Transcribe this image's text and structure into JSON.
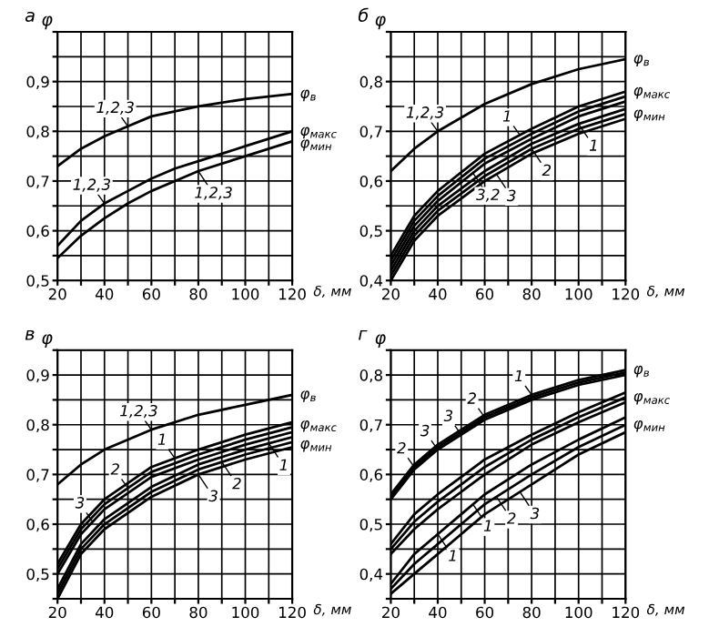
{
  "chart_data": [
    {
      "type": "line",
      "title": "а",
      "xlabel": "δ, мм",
      "ylabel": "φ",
      "grid": true,
      "xlim": [
        20,
        120
      ],
      "ylim": [
        0.5,
        1.0
      ],
      "xticks": [
        20,
        {
          "value": 30,
          "label": null
        },
        40,
        {
          "value": 50,
          "label": null
        },
        60,
        {
          "value": 70,
          "label": null
        },
        80,
        {
          "value": 90,
          "label": null
        },
        100,
        {
          "value": 110,
          "label": null
        },
        120
      ],
      "yticks": [
        {
          "value": 0.5,
          "label": "0,5"
        },
        {
          "value": 0.55,
          "label": null
        },
        {
          "value": 0.6,
          "label": "0,6"
        },
        {
          "value": 0.65,
          "label": null
        },
        {
          "value": 0.7,
          "label": "0,7"
        },
        {
          "value": 0.75,
          "label": null
        },
        {
          "value": 0.8,
          "label": "0,8"
        },
        {
          "value": 0.85,
          "label": null
        },
        {
          "value": 0.9,
          "label": "0,9"
        },
        {
          "value": 0.95,
          "label": null
        },
        {
          "value": 1.0,
          "label": null
        }
      ],
      "x": [
        20,
        30,
        40,
        50,
        60,
        70,
        80,
        100,
        120
      ],
      "series": [
        {
          "color": "#000000",
          "values": [
            0.73,
            0.765,
            0.79,
            0.81,
            0.83,
            0.84,
            0.85,
            0.865,
            0.875
          ]
        },
        {
          "color": "#000000",
          "values": [
            0.57,
            0.62,
            0.655,
            0.68,
            0.705,
            0.725,
            0.74,
            0.77,
            0.8
          ]
        },
        {
          "color": "#000000",
          "values": [
            0.545,
            0.59,
            0.625,
            0.655,
            0.68,
            0.7,
            0.72,
            0.75,
            0.78
          ]
        }
      ],
      "annotations": [
        {
          "text": "1,2,3",
          "x": 50,
          "y": 0.81
        },
        {
          "text": "1,2,3",
          "x": 40,
          "y": 0.655
        },
        {
          "text": "1,2,3",
          "x": 80,
          "y": 0.72
        },
        {
          "text": "φ$_{в}$",
          "x": 120,
          "y": 0.875
        },
        {
          "text": "φ$_{макс}$",
          "x": 120,
          "y": 0.8
        },
        {
          "text": "φ$_{мин}$",
          "x": 120,
          "y": 0.775
        }
      ]
    },
    {
      "type": "line",
      "title": "б",
      "xlabel": "δ, мм",
      "ylabel": "φ",
      "grid": true,
      "xlim": [
        20,
        120
      ],
      "ylim": [
        0.4,
        0.9
      ],
      "xticks": [
        20,
        {
          "value": 30,
          "label": null
        },
        40,
        {
          "value": 50,
          "label": null
        },
        60,
        {
          "value": 70,
          "label": null
        },
        80,
        {
          "value": 90,
          "label": null
        },
        100,
        {
          "value": 110,
          "label": null
        },
        120
      ],
      "yticks": [
        {
          "value": 0.4,
          "label": "0,4"
        },
        {
          "value": 0.45,
          "label": null
        },
        {
          "value": 0.5,
          "label": "0,5"
        },
        {
          "value": 0.55,
          "label": null
        },
        {
          "value": 0.6,
          "label": "0,6"
        },
        {
          "value": 0.65,
          "label": null
        },
        {
          "value": 0.7,
          "label": "0,7"
        },
        {
          "value": 0.75,
          "label": null
        },
        {
          "value": 0.8,
          "label": "0,8"
        },
        {
          "value": 0.85,
          "label": null
        },
        {
          "value": 0.9,
          "label": null
        }
      ],
      "x": [
        20,
        30,
        40,
        60,
        80,
        100,
        120
      ],
      "series": [
        {
          "color": "#000000",
          "values": [
            0.62,
            0.665,
            0.7,
            0.755,
            0.795,
            0.825,
            0.845
          ]
        },
        {
          "color": "#000000",
          "values": [
            0.45,
            0.53,
            0.58,
            0.655,
            0.705,
            0.75,
            0.78
          ]
        },
        {
          "color": "#000000",
          "values": [
            0.44,
            0.52,
            0.57,
            0.645,
            0.695,
            0.74,
            0.77
          ]
        },
        {
          "color": "#000000",
          "values": [
            0.43,
            0.51,
            0.56,
            0.635,
            0.685,
            0.73,
            0.76
          ]
        },
        {
          "color": "#000000",
          "values": [
            0.42,
            0.5,
            0.55,
            0.62,
            0.675,
            0.715,
            0.745
          ]
        },
        {
          "color": "#000000",
          "values": [
            0.41,
            0.49,
            0.54,
            0.61,
            0.665,
            0.705,
            0.735
          ]
        },
        {
          "color": "#000000",
          "values": [
            0.4,
            0.48,
            0.53,
            0.6,
            0.655,
            0.695,
            0.725
          ]
        }
      ],
      "annotations": [
        {
          "text": "1,2,3",
          "x": 40,
          "y": 0.7
        },
        {
          "text": "3,2",
          "x": 55,
          "y": 0.616
        },
        {
          "text": "1",
          "x": 75,
          "y": 0.6925
        },
        {
          "text": "1",
          "x": 100,
          "y": 0.715
        },
        {
          "text": "3",
          "x": 65,
          "y": 0.614
        },
        {
          "text": "2",
          "x": 80,
          "y": 0.665
        },
        {
          "text": "φ$_{в}$",
          "x": 120,
          "y": 0.845
        },
        {
          "text": "φ$_{макс}$",
          "x": 120,
          "y": 0.78
        },
        {
          "text": "φ$_{мин}$",
          "x": 120,
          "y": 0.735
        }
      ]
    },
    {
      "type": "line",
      "title": "в",
      "xlabel": "δ, мм",
      "ylabel": "φ",
      "grid": true,
      "xlim": [
        20,
        120
      ],
      "ylim": [
        0.45,
        0.95
      ],
      "xticks": [
        20,
        {
          "value": 30,
          "label": null
        },
        40,
        {
          "value": 50,
          "label": null
        },
        60,
        {
          "value": 70,
          "label": null
        },
        80,
        {
          "value": 90,
          "label": null
        },
        100,
        {
          "value": 110,
          "label": null
        },
        120
      ],
      "yticks": [
        {
          "value": 0.45,
          "label": null
        },
        {
          "value": 0.5,
          "label": "0,5"
        },
        {
          "value": 0.55,
          "label": null
        },
        {
          "value": 0.6,
          "label": "0,6"
        },
        {
          "value": 0.65,
          "label": null
        },
        {
          "value": 0.7,
          "label": "0,7"
        },
        {
          "value": 0.75,
          "label": null
        },
        {
          "value": 0.8,
          "label": "0,8"
        },
        {
          "value": 0.85,
          "label": null
        },
        {
          "value": 0.9,
          "label": "0,9"
        },
        {
          "value": 0.95,
          "label": null
        }
      ],
      "x": [
        20,
        30,
        40,
        60,
        80,
        100,
        120
      ],
      "series": [
        {
          "color": "#000000",
          "values": [
            0.68,
            0.72,
            0.75,
            0.79,
            0.82,
            0.84,
            0.86
          ]
        },
        {
          "color": "#000000",
          "values": [
            0.52,
            0.6,
            0.65,
            0.715,
            0.75,
            0.78,
            0.805
          ]
        },
        {
          "color": "#000000",
          "values": [
            0.51,
            0.59,
            0.64,
            0.705,
            0.74,
            0.77,
            0.795
          ]
        },
        {
          "color": "#000000",
          "values": [
            0.5,
            0.58,
            0.63,
            0.695,
            0.73,
            0.76,
            0.785
          ]
        },
        {
          "color": "#000000",
          "values": [
            0.47,
            0.56,
            0.61,
            0.675,
            0.72,
            0.75,
            0.775
          ]
        },
        {
          "color": "#000000",
          "values": [
            0.46,
            0.55,
            0.6,
            0.665,
            0.71,
            0.74,
            0.765
          ]
        },
        {
          "color": "#000000",
          "values": [
            0.45,
            0.54,
            0.59,
            0.655,
            0.7,
            0.73,
            0.755
          ]
        }
      ],
      "annotations": [
        {
          "text": "1,2,3",
          "x": 60,
          "y": 0.79
        },
        {
          "text": "3",
          "x": 35,
          "y": 0.605
        },
        {
          "text": "2",
          "x": 50,
          "y": 0.6725
        },
        {
          "text": "1",
          "x": 70,
          "y": 0.7325
        },
        {
          "text": "3",
          "x": 80,
          "y": 0.7
        },
        {
          "text": "2",
          "x": 90,
          "y": 0.725
        },
        {
          "text": "1",
          "x": 110,
          "y": 0.7625
        },
        {
          "text": "φ$_{в}$",
          "x": 120,
          "y": 0.86
        },
        {
          "text": "φ$_{макс}$",
          "x": 120,
          "y": 0.8
        },
        {
          "text": "φ$_{мин}$",
          "x": 120,
          "y": 0.76
        }
      ]
    },
    {
      "type": "line",
      "title": "г",
      "xlabel": "δ, мм",
      "ylabel": "φ",
      "grid": true,
      "xlim": [
        20,
        120
      ],
      "ylim": [
        0.35,
        0.85
      ],
      "xticks": [
        20,
        {
          "value": 30,
          "label": null
        },
        40,
        {
          "value": 50,
          "label": null
        },
        60,
        {
          "value": 70,
          "label": null
        },
        80,
        {
          "value": 90,
          "label": null
        },
        100,
        {
          "value": 110,
          "label": null
        },
        120
      ],
      "yticks": [
        {
          "value": 0.35,
          "label": null
        },
        {
          "value": 0.4,
          "label": "0,4"
        },
        {
          "value": 0.45,
          "label": null
        },
        {
          "value": 0.5,
          "label": "0,5"
        },
        {
          "value": 0.55,
          "label": null
        },
        {
          "value": 0.6,
          "label": "0,6"
        },
        {
          "value": 0.65,
          "label": null
        },
        {
          "value": 0.7,
          "label": "0,7"
        },
        {
          "value": 0.75,
          "label": null
        },
        {
          "value": 0.8,
          "label": "0,8"
        },
        {
          "value": 0.85,
          "label": null
        }
      ],
      "x": [
        20,
        30,
        40,
        60,
        80,
        100,
        120
      ],
      "series": [
        {
          "color": "#000000",
          "values": [
            0.56,
            0.62,
            0.66,
            0.72,
            0.76,
            0.79,
            0.81
          ]
        },
        {
          "color": "#000000",
          "values": [
            0.555,
            0.615,
            0.655,
            0.715,
            0.755,
            0.785,
            0.805
          ]
        },
        {
          "color": "#000000",
          "values": [
            0.55,
            0.61,
            0.65,
            0.71,
            0.75,
            0.78,
            0.8
          ]
        },
        {
          "color": "#000000",
          "values": [
            0.46,
            0.52,
            0.56,
            0.63,
            0.68,
            0.725,
            0.765
          ]
        },
        {
          "color": "#000000",
          "values": [
            0.45,
            0.505,
            0.545,
            0.615,
            0.67,
            0.715,
            0.755
          ]
        },
        {
          "color": "#000000",
          "values": [
            0.44,
            0.49,
            0.53,
            0.6,
            0.66,
            0.705,
            0.745
          ]
        },
        {
          "color": "#000000",
          "values": [
            0.38,
            0.44,
            0.48,
            0.56,
            0.62,
            0.67,
            0.715
          ]
        },
        {
          "color": "#000000",
          "values": [
            0.37,
            0.42,
            0.46,
            0.54,
            0.6,
            0.655,
            0.7
          ]
        },
        {
          "color": "#000000",
          "values": [
            0.36,
            0.4,
            0.44,
            0.52,
            0.58,
            0.64,
            0.685
          ]
        }
      ],
      "annotations": [
        {
          "text": "2",
          "x": 30,
          "y": 0.615
        },
        {
          "text": "3",
          "x": 40,
          "y": 0.65
        },
        {
          "text": "3",
          "x": 50,
          "y": 0.68
        },
        {
          "text": "2",
          "x": 60,
          "y": 0.715
        },
        {
          "text": "1",
          "x": 80,
          "y": 0.76
        },
        {
          "text": "1",
          "x": 40,
          "y": 0.48
        },
        {
          "text": "1",
          "x": 55,
          "y": 0.54
        },
        {
          "text": "2",
          "x": 65,
          "y": 0.555
        },
        {
          "text": "3",
          "x": 75,
          "y": 0.565
        },
        {
          "text": "φ$_{в}$",
          "x": 120,
          "y": 0.81
        },
        {
          "text": "φ$_{макс}$",
          "x": 120,
          "y": 0.755
        },
        {
          "text": "φ$_{мин}$",
          "x": 120,
          "y": 0.7
        }
      ]
    }
  ]
}
